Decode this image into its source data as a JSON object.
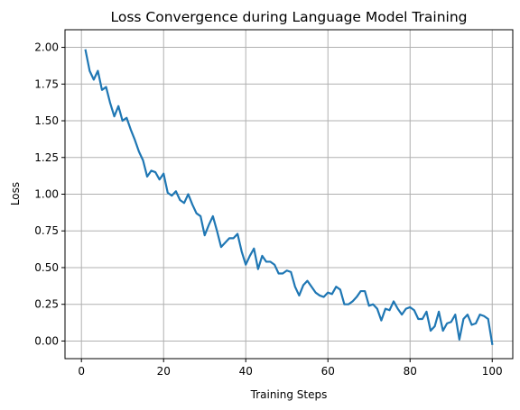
{
  "chart_data": {
    "type": "line",
    "title": "Loss Convergence during Language Model Training",
    "xlabel": "Training Steps",
    "ylabel": "Loss",
    "xlim": [
      -4,
      105
    ],
    "ylim": [
      -0.12,
      2.12
    ],
    "xticks": [
      0,
      20,
      40,
      60,
      80,
      100
    ],
    "xtick_labels": [
      "0",
      "20",
      "40",
      "60",
      "80",
      "100"
    ],
    "yticks": [
      0,
      0.25,
      0.5,
      0.75,
      1.0,
      1.25,
      1.5,
      1.75,
      2.0
    ],
    "ytick_labels": [
      "0.00",
      "0.25",
      "0.50",
      "0.75",
      "1.00",
      "1.25",
      "1.50",
      "1.75",
      "2.00"
    ],
    "grid": true,
    "line_color": "#1f77b4",
    "series": [
      {
        "x": [
          1,
          2,
          3,
          4,
          5,
          6,
          7,
          8,
          9,
          10,
          11,
          12,
          13,
          14,
          15,
          16,
          17,
          18,
          19,
          20,
          21,
          22,
          23,
          24,
          25,
          26,
          27,
          28,
          29,
          30,
          31,
          32,
          33,
          34,
          35,
          36,
          37,
          38,
          39,
          40,
          41,
          42,
          43,
          44,
          45,
          46,
          47,
          48,
          49,
          50,
          51,
          52,
          53,
          54,
          55,
          56,
          57,
          58,
          59,
          60,
          61,
          62,
          63,
          64,
          65,
          66,
          67,
          68,
          69,
          70,
          71,
          72,
          73,
          74,
          75,
          76,
          77,
          78,
          79,
          80,
          81,
          82,
          83,
          84,
          85,
          86,
          87,
          88,
          89,
          90,
          91,
          92,
          93,
          94,
          95,
          96,
          97,
          98,
          99,
          100
        ],
        "values": [
          1.98,
          1.84,
          1.78,
          1.84,
          1.71,
          1.73,
          1.62,
          1.53,
          1.6,
          1.5,
          1.52,
          1.44,
          1.37,
          1.29,
          1.23,
          1.12,
          1.16,
          1.15,
          1.1,
          1.14,
          1.01,
          0.99,
          1.02,
          0.96,
          0.94,
          1.0,
          0.93,
          0.87,
          0.85,
          0.72,
          0.79,
          0.85,
          0.75,
          0.64,
          0.67,
          0.7,
          0.7,
          0.73,
          0.61,
          0.52,
          0.58,
          0.63,
          0.49,
          0.58,
          0.54,
          0.54,
          0.52,
          0.46,
          0.46,
          0.48,
          0.47,
          0.37,
          0.31,
          0.38,
          0.41,
          0.37,
          0.33,
          0.31,
          0.3,
          0.33,
          0.32,
          0.37,
          0.35,
          0.25,
          0.25,
          0.27,
          0.3,
          0.34,
          0.34,
          0.24,
          0.25,
          0.22,
          0.14,
          0.22,
          0.21,
          0.27,
          0.22,
          0.18,
          0.22,
          0.23,
          0.21,
          0.15,
          0.15,
          0.2,
          0.07,
          0.1,
          0.2,
          0.07,
          0.12,
          0.13,
          0.18,
          0.01,
          0.15,
          0.18,
          0.11,
          0.12,
          0.18,
          0.17,
          0.15,
          -0.02
        ]
      }
    ]
  }
}
